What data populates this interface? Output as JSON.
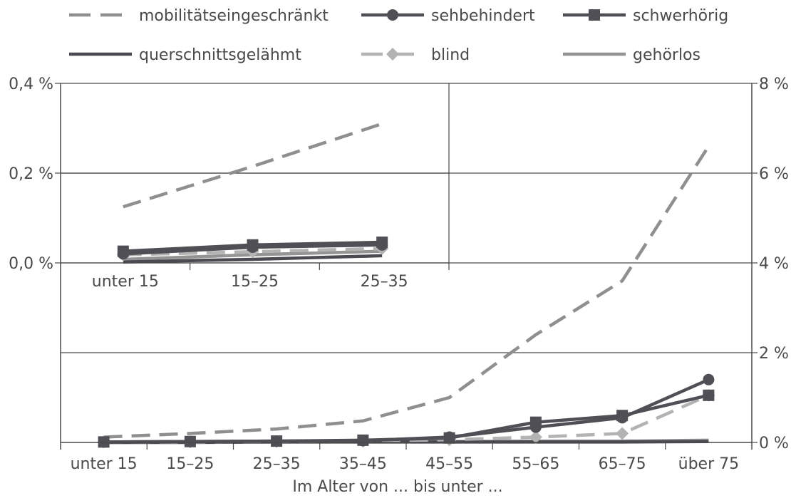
{
  "chart_data": [
    {
      "type": "line",
      "name": "main",
      "xlabel": "Im Alter von ... bis unter ...",
      "ylabel": "",
      "y_axis_side": "right",
      "categories": [
        "unter 15",
        "15–25",
        "25–35",
        "35–45",
        "45–55",
        "55–65",
        "65–75",
        "über 75"
      ],
      "ylim": [
        0,
        8
      ],
      "yticks": [
        0,
        2,
        4,
        6,
        8
      ],
      "ytick_labels": [
        "0 %",
        "2 %",
        "4 %",
        "6 %",
        "8 %"
      ],
      "series": [
        {
          "name": "mobilitätseingeschränkt",
          "values": [
            0.12,
            0.2,
            0.3,
            0.48,
            1.0,
            2.4,
            3.6,
            6.6
          ]
        },
        {
          "name": "sehbehindert",
          "values": [
            0.01,
            0.02,
            0.03,
            0.04,
            0.12,
            0.34,
            0.55,
            1.4
          ]
        },
        {
          "name": "schwerhörig",
          "values": [
            0.01,
            0.02,
            0.03,
            0.05,
            0.1,
            0.45,
            0.6,
            1.05
          ]
        },
        {
          "name": "querschnittsgelähmt",
          "values": [
            0.0,
            0.0,
            0.01,
            0.01,
            0.01,
            0.01,
            0.01,
            0.02
          ]
        },
        {
          "name": "blind",
          "values": [
            0.01,
            0.01,
            0.02,
            0.03,
            0.06,
            0.12,
            0.2,
            1.05
          ]
        },
        {
          "name": "gehörlos",
          "values": [
            0.0,
            0.01,
            0.01,
            0.02,
            0.02,
            0.03,
            0.03,
            0.05
          ]
        }
      ],
      "grid": true
    },
    {
      "type": "line",
      "name": "inset",
      "categories": [
        "unter 15",
        "15–25",
        "25–35"
      ],
      "ylim": [
        0,
        0.4
      ],
      "yticks": [
        0,
        0.2,
        0.4
      ],
      "ytick_labels": [
        "0,0 %",
        "0,2 %",
        "0,4 %"
      ],
      "y_axis_side": "left",
      "series": [
        {
          "name": "mobilitätseingeschränkt",
          "values": [
            0.125,
            0.215,
            0.31
          ]
        },
        {
          "name": "sehbehindert",
          "values": [
            0.02,
            0.035,
            0.04
          ]
        },
        {
          "name": "schwerhörig",
          "values": [
            0.026,
            0.04,
            0.046
          ]
        },
        {
          "name": "querschnittsgelähmt",
          "values": [
            0.002,
            0.008,
            0.016
          ]
        },
        {
          "name": "blind",
          "values": [
            0.018,
            0.025,
            0.032
          ]
        },
        {
          "name": "gehörlos",
          "values": [
            0.008,
            0.018,
            0.026
          ]
        }
      ]
    }
  ],
  "legend": [
    {
      "label": "mobilitätseingeschränkt",
      "color": "#8f8f8f",
      "dash": "dashed",
      "marker": "none"
    },
    {
      "label": "sehbehindert",
      "color": "#4f4f55",
      "dash": "solid",
      "marker": "circle"
    },
    {
      "label": "schwerhörig",
      "color": "#4f4f55",
      "dash": "solid",
      "marker": "square"
    },
    {
      "label": "querschnittsgelähmt",
      "color": "#4a4a50",
      "dash": "solid",
      "marker": "none"
    },
    {
      "label": "blind",
      "color": "#b3b3b3",
      "dash": "dashed",
      "marker": "diamond"
    },
    {
      "label": "gehörlos",
      "color": "#949494",
      "dash": "solid",
      "marker": "none"
    }
  ]
}
